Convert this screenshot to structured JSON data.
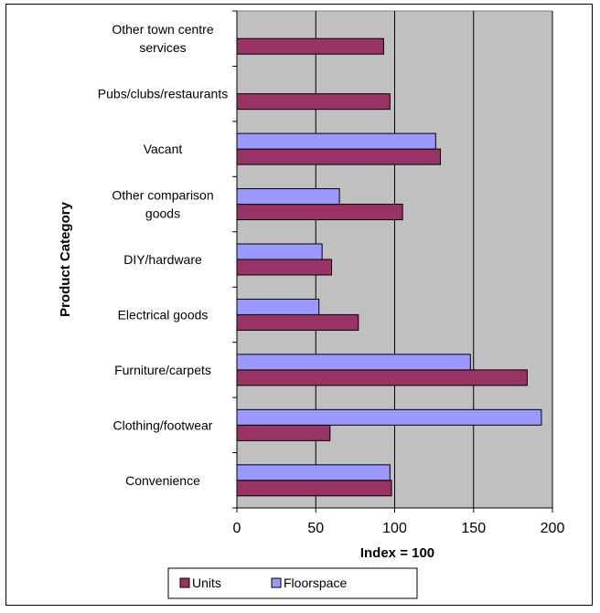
{
  "chart_data": {
    "type": "bar",
    "orientation": "horizontal",
    "xlabel": "Index = 100",
    "ylabel": "Product Category",
    "xlim": [
      0,
      200
    ],
    "xticks": [
      0,
      50,
      100,
      150,
      200
    ],
    "grid": "vertical",
    "legend_position": "bottom",
    "categories": [
      {
        "lines": [
          "Convenience"
        ]
      },
      {
        "lines": [
          "Clothing/footwear"
        ]
      },
      {
        "lines": [
          "Furniture/carpets"
        ]
      },
      {
        "lines": [
          "Electrical goods"
        ]
      },
      {
        "lines": [
          "DIY/hardware"
        ]
      },
      {
        "lines": [
          "Other comparison",
          "goods"
        ]
      },
      {
        "lines": [
          "Vacant"
        ]
      },
      {
        "lines": [
          "Pubs/clubs/restaurants"
        ]
      },
      {
        "lines": [
          "Other town centre",
          "services"
        ]
      }
    ],
    "series": [
      {
        "name": "Units",
        "color": "#993366",
        "values": [
          98,
          59,
          184,
          77,
          60,
          105,
          129,
          97,
          93
        ]
      },
      {
        "name": "Floorspace",
        "color": "#9999ff",
        "values": [
          97,
          193,
          148,
          52,
          54,
          65,
          126,
          null,
          null
        ]
      }
    ]
  },
  "colors": {
    "plot_background": "#c0c0c0",
    "gridline": "#000000"
  }
}
